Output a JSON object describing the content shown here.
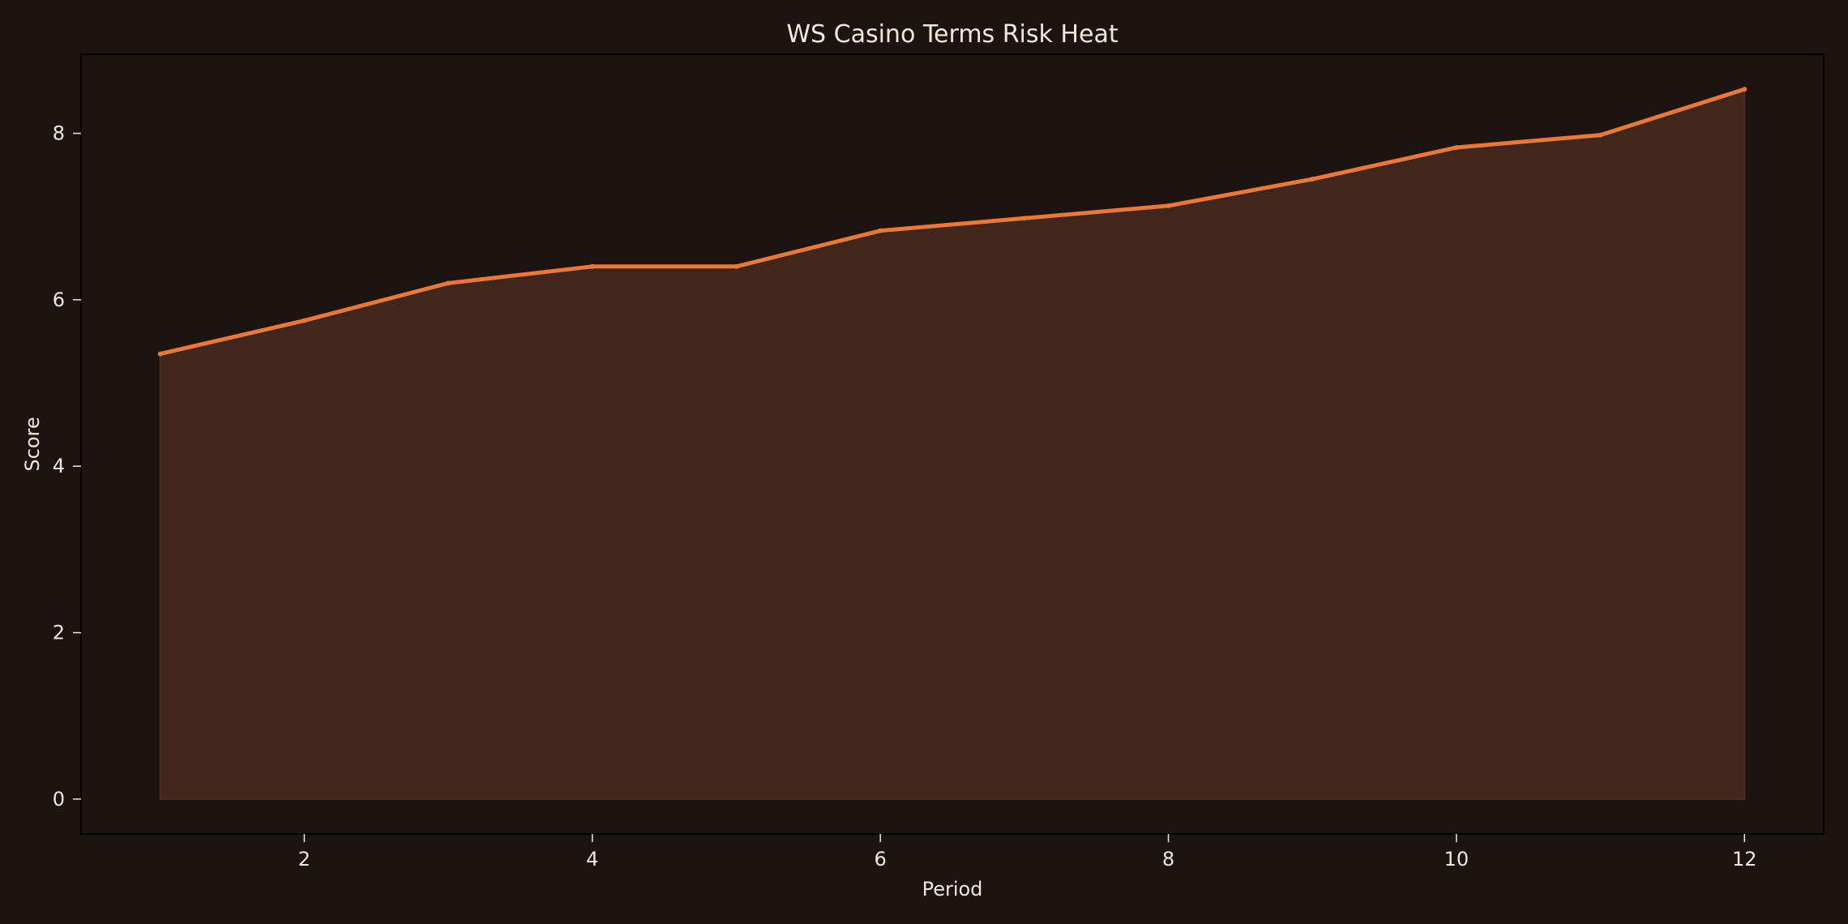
{
  "chart_data": {
    "type": "area",
    "title": "WS Casino Terms Risk Heat",
    "xlabel": "Period",
    "ylabel": "Score",
    "x": [
      1,
      2,
      3,
      4,
      5,
      6,
      7,
      8,
      9,
      10,
      11,
      12
    ],
    "y": [
      5.35,
      5.75,
      6.2,
      6.4,
      6.4,
      6.83,
      6.98,
      7.13,
      7.45,
      7.83,
      7.98,
      8.53
    ],
    "xlim": [
      0.45,
      12.55
    ],
    "ylim": [
      -0.42,
      8.95
    ],
    "xticks": [
      2,
      4,
      6,
      8,
      10,
      12
    ],
    "yticks": [
      0,
      2,
      4,
      6,
      8
    ],
    "grid": false,
    "colors": {
      "background": "#1c1411",
      "plot_background": "#1c1411",
      "line": "#e8793a",
      "fill": "#42261a",
      "axes": "#000000",
      "text": "#f3e7d8"
    }
  }
}
